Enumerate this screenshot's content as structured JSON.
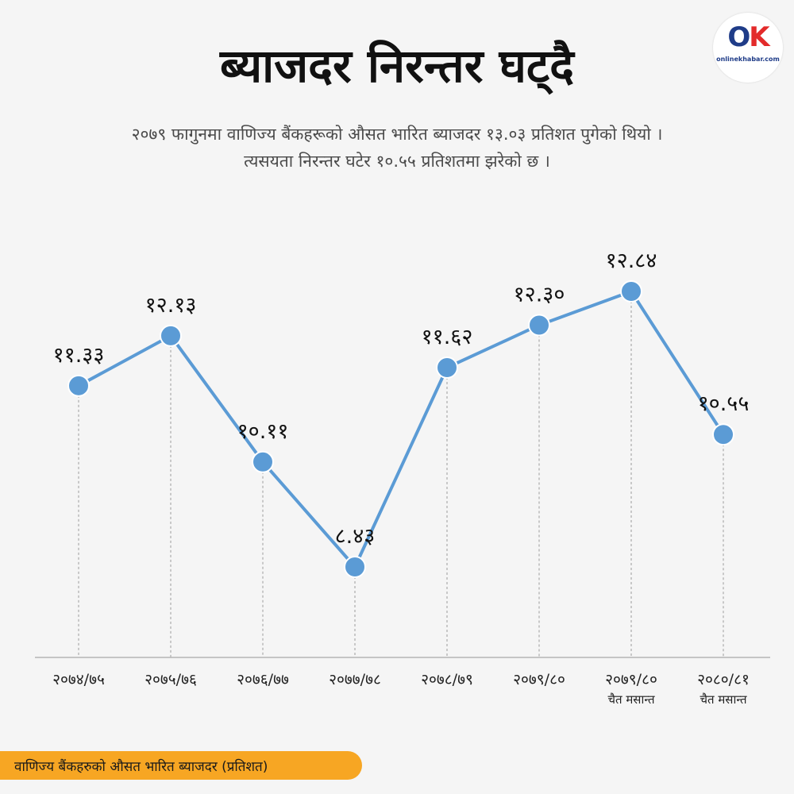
{
  "header": {
    "title": "ब्याजदर निरन्तर घट्दै",
    "subtitle_line1": "२०७९ फागुनमा वाणिज्य बैंकहरूको औसत भारित ब्याजदर १३.०३ प्रतिशत पुगेको थियो ।",
    "subtitle_line2": "त्यसयता निरन्तर घटेर १०.५५ प्रतिशतमा झरेको छ ।"
  },
  "logo": {
    "mark_o": "O",
    "mark_k": "K",
    "text": "onlinekhabar.com"
  },
  "footer": {
    "label": "वाणिज्य बैंकहरुको औसत भारित ब्याजदर  (प्रतिशत)"
  },
  "colors": {
    "line": "#5b9bd5",
    "footer": "#f7a623"
  },
  "chart_data": {
    "type": "line",
    "categories": [
      [
        "२०७४/७५"
      ],
      [
        "२०७५/७६"
      ],
      [
        "२०७६/७७"
      ],
      [
        "२०७७/७८"
      ],
      [
        "२०७८/७९"
      ],
      [
        "२०७९/८०"
      ],
      [
        "२०७९/८०",
        "चैत मसान्त"
      ],
      [
        "२०८०/८१",
        "चैत मसान्त"
      ]
    ],
    "values": [
      11.33,
      12.13,
      10.11,
      8.43,
      11.62,
      12.3,
      12.84,
      10.55
    ],
    "value_labels": [
      "११.३३",
      "१२.१३",
      "१०.११",
      "८.४३",
      "११.६२",
      "१२.३०",
      "१२.८४",
      "१०.५५"
    ],
    "title": "ब्याजदर निरन्तर घट्दै",
    "xlabel": "",
    "ylabel": "",
    "grid": false
  }
}
